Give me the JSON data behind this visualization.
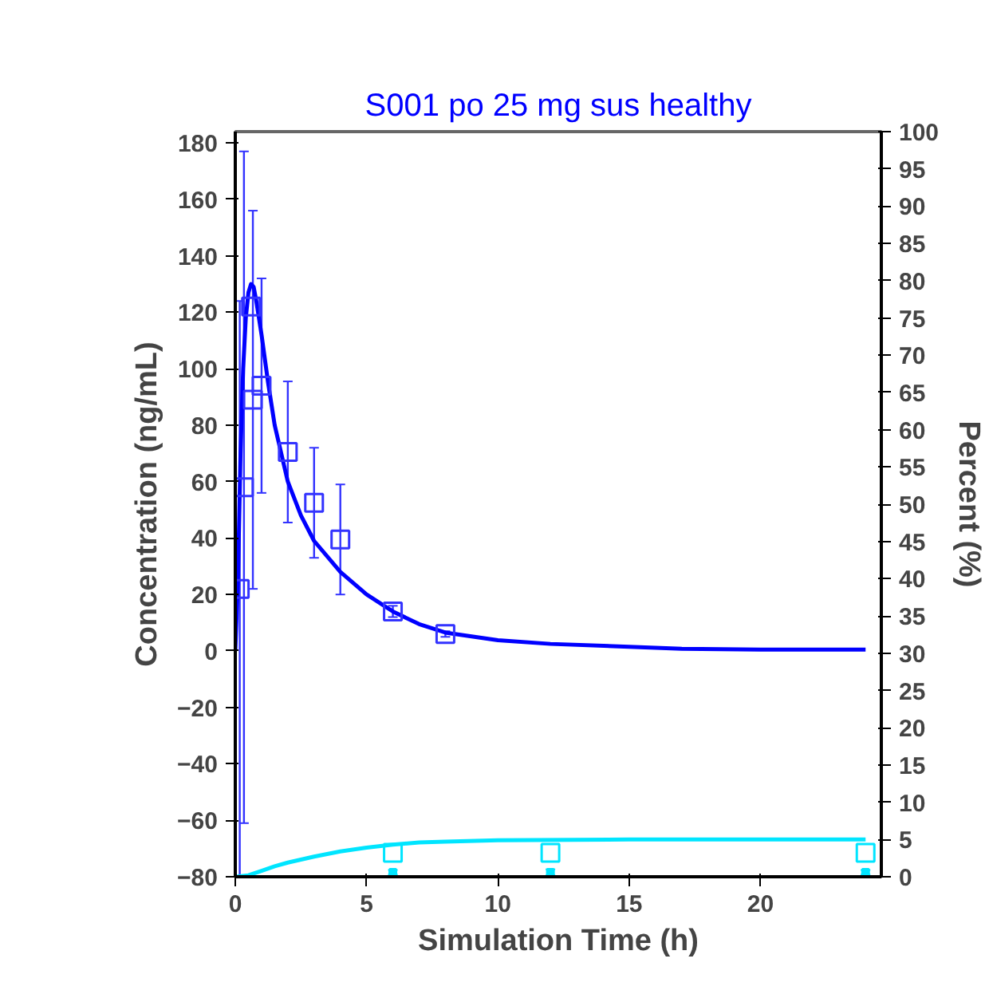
{
  "chart_data": {
    "type": "line",
    "title": "S001 po 25 mg sus healthy",
    "xlabel": "Simulation Time (h)",
    "ylabel": "Concentration (ng/mL)",
    "y2label": "Percent (%)",
    "xlim": [
      0,
      24.6
    ],
    "xticks": [
      0,
      5,
      10,
      15,
      20
    ],
    "ylim": [
      -80,
      184
    ],
    "yticks": [
      -80,
      -60,
      -40,
      -20,
      0,
      20,
      40,
      60,
      80,
      100,
      120,
      140,
      160,
      180
    ],
    "y2lim": [
      0,
      100
    ],
    "y2ticks": [
      0,
      5,
      10,
      15,
      20,
      25,
      30,
      35,
      40,
      45,
      50,
      55,
      60,
      65,
      70,
      75,
      80,
      85,
      90,
      95,
      100
    ],
    "grid": false,
    "line_style": "solid",
    "series": [
      {
        "color": "#0000ff",
        "marker": "none",
        "x": [
          0,
          0.1,
          0.2,
          0.3,
          0.4,
          0.5,
          0.6,
          0.7,
          0.8,
          1,
          1.25,
          1.5,
          2,
          2.5,
          3,
          4,
          5,
          6,
          7,
          8,
          10,
          12,
          15,
          17,
          20,
          24
        ],
        "values": [
          0,
          25,
          70,
          100,
          118,
          127,
          130,
          129,
          124,
          112,
          95,
          80,
          60,
          48,
          39,
          28,
          20,
          14,
          9.5,
          6.5,
          3.8,
          2.5,
          1.5,
          0.8,
          0.5,
          0.5
        ]
      },
      {
        "type": "scatter",
        "color": "#3333ff",
        "marker": "square",
        "x": [
          0.17,
          0.33,
          0.6,
          0.67,
          1,
          2,
          3,
          4,
          6,
          8
        ],
        "values": [
          22,
          58,
          122,
          89,
          94,
          70.5,
          52.5,
          39.5,
          14,
          6
        ],
        "errors": [
          102,
          119,
          null,
          67,
          38,
          25,
          19.5,
          19.5,
          2,
          1
        ]
      },
      {
        "type": "line",
        "axis": "y2",
        "color": "#00e5ff",
        "marker": "none",
        "x": [
          0,
          0.5,
          1,
          1.5,
          2,
          3,
          4,
          5,
          6,
          7,
          8,
          10,
          15,
          24
        ],
        "values": [
          0,
          0.2,
          0.8,
          1.4,
          1.9,
          2.7,
          3.4,
          3.9,
          4.3,
          4.6,
          4.7,
          4.9,
          5,
          5
        ]
      },
      {
        "type": "scatter",
        "axis": "y2",
        "color": "#00e5ff",
        "marker": "square",
        "x": [
          6,
          12,
          24
        ],
        "values": [
          3.2,
          3.2,
          3.2
        ]
      },
      {
        "type": "scatter",
        "axis": "y2",
        "color": "#00e5ff",
        "marker": "square",
        "x": [
          6,
          12,
          24
        ],
        "values": [
          0.6,
          0.6,
          0.6
        ],
        "errors": [
          0.3,
          0.4,
          0.3
        ]
      }
    ]
  }
}
